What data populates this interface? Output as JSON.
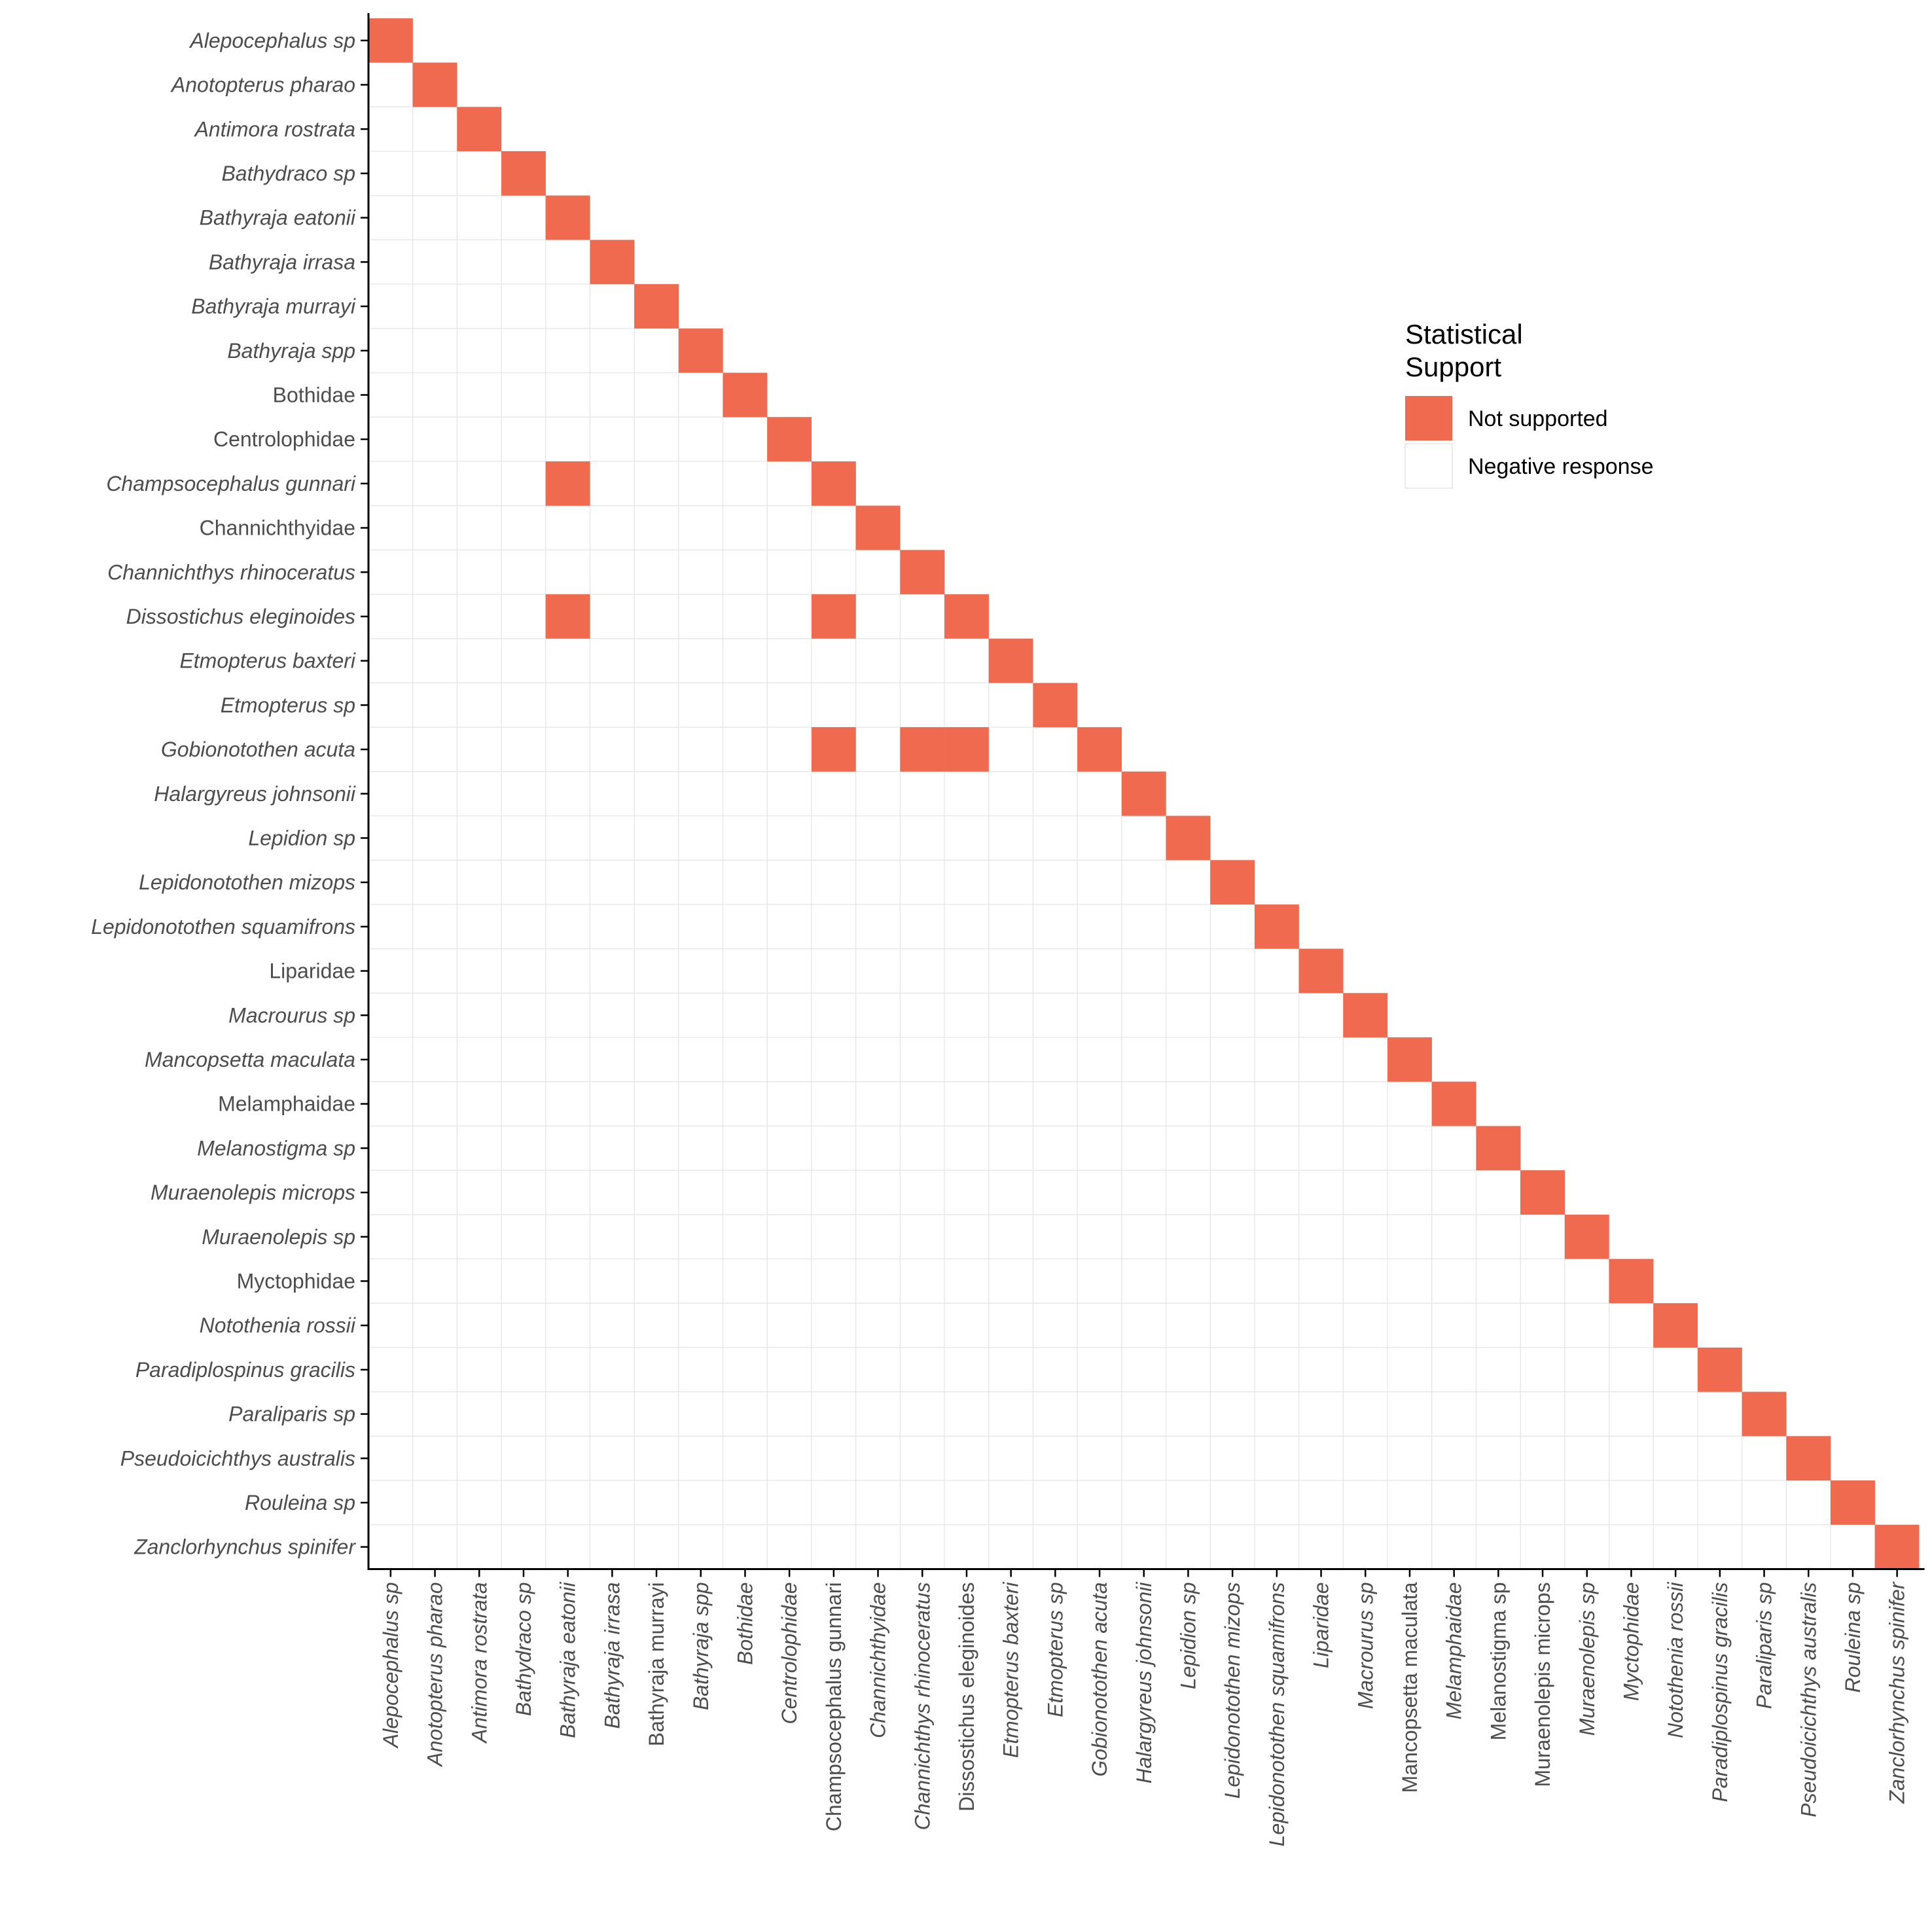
{
  "chart_data": {
    "type": "heatmap",
    "title": "",
    "xlabel": "",
    "ylabel": "",
    "categories": [
      {
        "name": "Alepocephalus sp",
        "italic": true
      },
      {
        "name": "Anotopterus pharao",
        "italic": true
      },
      {
        "name": "Antimora rostrata",
        "italic": true
      },
      {
        "name": "Bathydraco sp",
        "italic": true
      },
      {
        "name": "Bathyraja eatonii",
        "italic": true
      },
      {
        "name": "Bathyraja irrasa",
        "italic": true
      },
      {
        "name": "Bathyraja murrayi",
        "italic": true
      },
      {
        "name": "Bathyraja spp",
        "italic": true
      },
      {
        "name": "Bothidae",
        "italic": false
      },
      {
        "name": "Centrolophidae",
        "italic": false
      },
      {
        "name": "Champsocephalus gunnari",
        "italic": true
      },
      {
        "name": "Channichthyidae",
        "italic": false
      },
      {
        "name": "Channichthys rhinoceratus",
        "italic": true
      },
      {
        "name": "Dissostichus eleginoides",
        "italic": true
      },
      {
        "name": "Etmopterus baxteri",
        "italic": true
      },
      {
        "name": "Etmopterus sp",
        "italic": true
      },
      {
        "name": "Gobionotothen acuta",
        "italic": true
      },
      {
        "name": "Halargyreus johnsonii",
        "italic": true
      },
      {
        "name": "Lepidion sp",
        "italic": true
      },
      {
        "name": "Lepidonotothen mizops",
        "italic": true
      },
      {
        "name": "Lepidonotothen squamifrons",
        "italic": true
      },
      {
        "name": "Liparidae",
        "italic": false
      },
      {
        "name": "Macrourus sp",
        "italic": true
      },
      {
        "name": "Mancopsetta maculata",
        "italic": true
      },
      {
        "name": "Melamphaidae",
        "italic": false
      },
      {
        "name": "Melanostigma sp",
        "italic": true
      },
      {
        "name": "Muraenolepis microps",
        "italic": true
      },
      {
        "name": "Muraenolepis sp",
        "italic": true
      },
      {
        "name": "Myctophidae",
        "italic": false
      },
      {
        "name": "Notothenia rossii",
        "italic": true
      },
      {
        "name": "Paradiplospinus gracilis",
        "italic": true
      },
      {
        "name": "Paraliparis sp",
        "italic": true
      },
      {
        "name": "Pseudoicichthys australis",
        "italic": true
      },
      {
        "name": "Rouleina sp",
        "italic": true
      },
      {
        "name": "Zanclorhynchus spinifer",
        "italic": true
      }
    ],
    "x_italic_overrides": {
      "Bothidae": true,
      "Channichthyidae": true,
      "Liparidae": true,
      "Melamphaidae": true,
      "Myctophidae": true,
      "Centrolophidae": true,
      "Bathyraja murrayi": false,
      "Champsocephalus gunnari": false,
      "Dissostichus eleginoides": false,
      "Mancopsetta maculata": false,
      "Melanostigma sp": false,
      "Muraenolepis microps": false
    },
    "cells_not_supported": [
      {
        "row": "Alepocephalus sp",
        "col": "Alepocephalus sp"
      },
      {
        "row": "Anotopterus pharao",
        "col": "Anotopterus pharao"
      },
      {
        "row": "Antimora rostrata",
        "col": "Antimora rostrata"
      },
      {
        "row": "Bathydraco sp",
        "col": "Bathydraco sp"
      },
      {
        "row": "Bathyraja eatonii",
        "col": "Bathyraja eatonii"
      },
      {
        "row": "Bathyraja irrasa",
        "col": "Bathyraja irrasa"
      },
      {
        "row": "Bathyraja murrayi",
        "col": "Bathyraja murrayi"
      },
      {
        "row": "Bathyraja spp",
        "col": "Bathyraja spp"
      },
      {
        "row": "Bothidae",
        "col": "Bothidae"
      },
      {
        "row": "Centrolophidae",
        "col": "Centrolophidae"
      },
      {
        "row": "Champsocephalus gunnari",
        "col": "Bathyraja eatonii"
      },
      {
        "row": "Champsocephalus gunnari",
        "col": "Champsocephalus gunnari"
      },
      {
        "row": "Channichthyidae",
        "col": "Channichthyidae"
      },
      {
        "row": "Channichthys rhinoceratus",
        "col": "Channichthys rhinoceratus"
      },
      {
        "row": "Dissostichus eleginoides",
        "col": "Bathyraja eatonii"
      },
      {
        "row": "Dissostichus eleginoides",
        "col": "Champsocephalus gunnari"
      },
      {
        "row": "Dissostichus eleginoides",
        "col": "Dissostichus eleginoides"
      },
      {
        "row": "Etmopterus baxteri",
        "col": "Etmopterus baxteri"
      },
      {
        "row": "Etmopterus sp",
        "col": "Etmopterus sp"
      },
      {
        "row": "Gobionotothen acuta",
        "col": "Champsocephalus gunnari"
      },
      {
        "row": "Gobionotothen acuta",
        "col": "Channichthys rhinoceratus"
      },
      {
        "row": "Gobionotothen acuta",
        "col": "Dissostichus eleginoides"
      },
      {
        "row": "Gobionotothen acuta",
        "col": "Gobionotothen acuta"
      },
      {
        "row": "Halargyreus johnsonii",
        "col": "Halargyreus johnsonii"
      },
      {
        "row": "Lepidion sp",
        "col": "Lepidion sp"
      },
      {
        "row": "Lepidonotothen mizops",
        "col": "Lepidonotothen mizops"
      },
      {
        "row": "Lepidonotothen squamifrons",
        "col": "Lepidonotothen squamifrons"
      },
      {
        "row": "Liparidae",
        "col": "Liparidae"
      },
      {
        "row": "Macrourus sp",
        "col": "Macrourus sp"
      },
      {
        "row": "Mancopsetta maculata",
        "col": "Mancopsetta maculata"
      },
      {
        "row": "Melamphaidae",
        "col": "Melamphaidae"
      },
      {
        "row": "Melanostigma sp",
        "col": "Melanostigma sp"
      },
      {
        "row": "Muraenolepis microps",
        "col": "Muraenolepis microps"
      },
      {
        "row": "Muraenolepis sp",
        "col": "Muraenolepis sp"
      },
      {
        "row": "Myctophidae",
        "col": "Myctophidae"
      },
      {
        "row": "Notothenia rossii",
        "col": "Notothenia rossii"
      },
      {
        "row": "Paradiplospinus gracilis",
        "col": "Paradiplospinus gracilis"
      },
      {
        "row": "Paraliparis sp",
        "col": "Paraliparis sp"
      },
      {
        "row": "Pseudoicichthys australis",
        "col": "Pseudoicichthys australis"
      },
      {
        "row": "Rouleina sp",
        "col": "Rouleina sp"
      },
      {
        "row": "Zanclorhynchus spinifer",
        "col": "Zanclorhynchus spinifer"
      }
    ],
    "default_value": "Negative response",
    "grid": true,
    "legend": {
      "placement": "right",
      "title_lines": [
        "Statistical",
        "Support"
      ],
      "entries": [
        {
          "label": "Not supported",
          "color": "#F06A50"
        },
        {
          "label": "Negative response",
          "color": "#FFFFFF"
        }
      ]
    },
    "colors": {
      "not_supported": "#F06A50",
      "negative_response": "#FFFFFF",
      "grid": "#E5E5E5",
      "axis": "#000000",
      "tick_text": "#4D4D4D"
    }
  }
}
